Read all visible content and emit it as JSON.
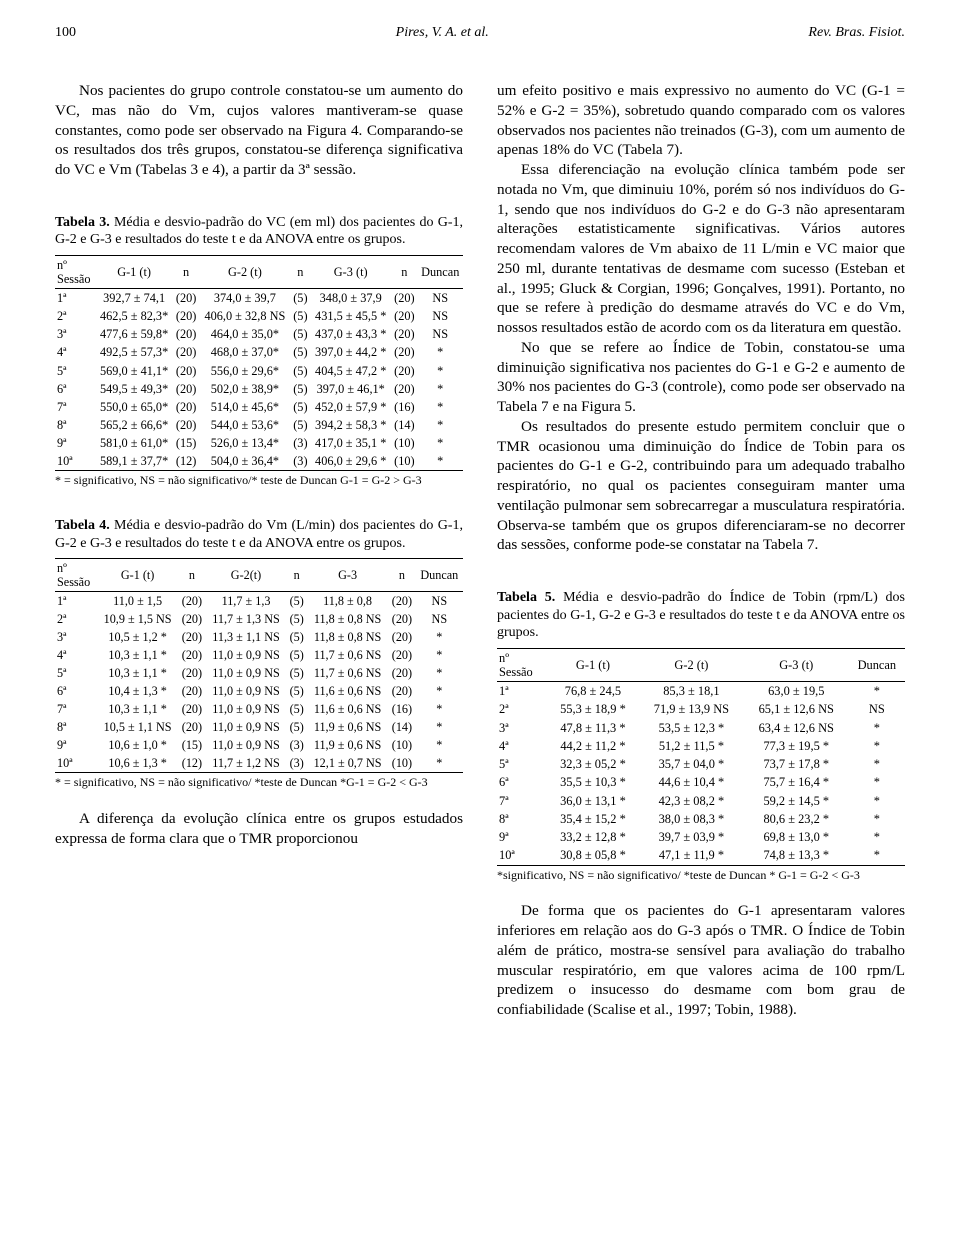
{
  "header": {
    "page_number": "100",
    "center": "Pires, V. A. et al.",
    "right": "Rev. Bras. Fisiot."
  },
  "left_col": {
    "p1": "Nos pacientes do grupo controle constatou-se um aumento do VC, mas não do Vm, cujos valores mantiveram-se quase constantes, como pode ser observado na Figura 4. Comparando-se os resultados dos três grupos, constatou-se diferença significativa do VC e Vm (Tabelas 3 e 4), a partir da 3ª sessão.",
    "t3_caption_b": "Tabela 3.",
    "t3_caption": "Média e desvio-padrão do VC (em ml) dos pacientes do G-1, G-2 e G-3 e resultados do teste t e da ANOVA entre os grupos.",
    "t3_head": {
      "c1a": "nº",
      "c1b": "Sessão",
      "c2": "G-1 (t)",
      "c3": "n",
      "c4": "G-2 (t)",
      "c5": "n",
      "c6": "G-3 (t)",
      "c7": "n",
      "c8": "Duncan"
    },
    "t3_rows": [
      {
        "s": "1ª",
        "g1": "392,7 ± 74,1",
        "n1": "(20)",
        "g2": "374,0 ± 39,7",
        "n2": "(5)",
        "g3": "348,0 ± 37,9",
        "n3": "(20)",
        "d": "NS"
      },
      {
        "s": "2ª",
        "g1": "462,5 ± 82,3*",
        "n1": "(20)",
        "g2": "406,0 ± 32,8 NS",
        "n2": "(5)",
        "g3": "431,5 ± 45,5 *",
        "n3": "(20)",
        "d": "NS"
      },
      {
        "s": "3ª",
        "g1": "477,6 ± 59,8*",
        "n1": "(20)",
        "g2": "464,0 ± 35,0*",
        "n2": "(5)",
        "g3": "437,0 ± 43,3 *",
        "n3": "(20)",
        "d": "NS"
      },
      {
        "s": "4ª",
        "g1": "492,5 ± 57,3*",
        "n1": "(20)",
        "g2": "468,0 ± 37,0*",
        "n2": "(5)",
        "g3": "397,0 ± 44,2 *",
        "n3": "(20)",
        "d": "*"
      },
      {
        "s": "5ª",
        "g1": "569,0 ± 41,1*",
        "n1": "(20)",
        "g2": "556,0 ± 29,6*",
        "n2": "(5)",
        "g3": "404,5 ± 47,2 *",
        "n3": "(20)",
        "d": "*"
      },
      {
        "s": "6ª",
        "g1": "549,5 ± 49,3*",
        "n1": "(20)",
        "g2": "502,0 ± 38,9*",
        "n2": "(5)",
        "g3": "397,0 ± 46,1*",
        "n3": "(20)",
        "d": "*"
      },
      {
        "s": "7ª",
        "g1": "550,0 ± 65,0*",
        "n1": "(20)",
        "g2": "514,0 ± 45,6*",
        "n2": "(5)",
        "g3": "452,0 ± 57,9 *",
        "n3": "(16)",
        "d": "*"
      },
      {
        "s": "8ª",
        "g1": "565,2 ± 66,6*",
        "n1": "(20)",
        "g2": "544,0 ± 53,6*",
        "n2": "(5)",
        "g3": "394,2 ± 58,3 *",
        "n3": "(14)",
        "d": "*"
      },
      {
        "s": "9ª",
        "g1": "581,0 ± 61,0*",
        "n1": "(15)",
        "g2": "526,0 ± 13,4*",
        "n2": "(3)",
        "g3": "417,0 ± 35,1 *",
        "n3": "(10)",
        "d": "*"
      },
      {
        "s": "10ª",
        "g1": "589,1 ± 37,7*",
        "n1": "(12)",
        "g2": "504,0 ± 36,4*",
        "n2": "(3)",
        "g3": "406,0 ± 29,6 *",
        "n3": "(10)",
        "d": "*"
      }
    ],
    "t3_foot": "* = significativo, NS = não significativo/* teste de Duncan G-1 = G-2 > G-3",
    "t4_caption_b": "Tabela 4.",
    "t4_caption": "Média e desvio-padrão do Vm (L/min) dos pacientes do G-1, G-2 e G-3 e resultados do teste t e da ANOVA entre os grupos.",
    "t4_head": {
      "c1a": "nº",
      "c1b": "Sessão",
      "c2": "G-1 (t)",
      "c3": "n",
      "c4": "G-2(t)",
      "c5": "n",
      "c6": "G-3",
      "c7": "n",
      "c8": "Duncan"
    },
    "t4_rows": [
      {
        "s": "1ª",
        "g1": "11,0 ± 1,5",
        "n1": "(20)",
        "g2": "11,7 ± 1,3",
        "n2": "(5)",
        "g3": "11,8 ± 0,8",
        "n3": "(20)",
        "d": "NS"
      },
      {
        "s": "2ª",
        "g1": "10,9 ± 1,5 NS",
        "n1": "(20)",
        "g2": "11,7 ± 1,3 NS",
        "n2": "(5)",
        "g3": "11,8 ± 0,8 NS",
        "n3": "(20)",
        "d": "NS"
      },
      {
        "s": "3ª",
        "g1": "10,5 ± 1,2 *",
        "n1": "(20)",
        "g2": "11,3 ± 1,1 NS",
        "n2": "(5)",
        "g3": "11,8 ± 0,8 NS",
        "n3": "(20)",
        "d": "*"
      },
      {
        "s": "4ª",
        "g1": "10,3 ± 1,1 *",
        "n1": "(20)",
        "g2": "11,0 ± 0,9 NS",
        "n2": "(5)",
        "g3": "11,7 ± 0,6 NS",
        "n3": "(20)",
        "d": "*"
      },
      {
        "s": "5ª",
        "g1": "10,3 ± 1,1 *",
        "n1": "(20)",
        "g2": "11,0 ± 0,9 NS",
        "n2": "(5)",
        "g3": "11,7 ± 0,6 NS",
        "n3": "(20)",
        "d": "*"
      },
      {
        "s": "6ª",
        "g1": "10,4 ± 1,3 *",
        "n1": "(20)",
        "g2": "11,0 ± 0,9 NS",
        "n2": "(5)",
        "g3": "11,6 ± 0,6 NS",
        "n3": "(20)",
        "d": "*"
      },
      {
        "s": "7ª",
        "g1": "10,3 ± 1,1 *",
        "n1": "(20)",
        "g2": "11,0 ± 0,9 NS",
        "n2": "(5)",
        "g3": "11,6 ± 0,6 NS",
        "n3": "(16)",
        "d": "*"
      },
      {
        "s": "8ª",
        "g1": "10,5 ± 1,1 NS",
        "n1": "(20)",
        "g2": "11,0 ± 0,9 NS",
        "n2": "(5)",
        "g3": "11,9 ± 0,6 NS",
        "n3": "(14)",
        "d": "*"
      },
      {
        "s": "9ª",
        "g1": "10,6 ± 1,0 *",
        "n1": "(15)",
        "g2": "11,0 ± 0,9 NS",
        "n2": "(3)",
        "g3": "11,9 ± 0,6 NS",
        "n3": "(10)",
        "d": "*"
      },
      {
        "s": "10ª",
        "g1": "10,6 ± 1,3 *",
        "n1": "(12)",
        "g2": "11,7 ± 1,2 NS",
        "n2": "(3)",
        "g3": "12,1 ± 0,7 NS",
        "n3": "(10)",
        "d": "*"
      }
    ],
    "t4_foot": "* = significativo, NS = não significativo/ *teste de Duncan *G-1 = G-2 < G-3",
    "p2": "A diferença da evolução clínica entre os grupos estudados expressa de forma clara que o TMR proporcionou"
  },
  "right_col": {
    "p1": "um efeito positivo e mais expressivo no aumento do VC (G-1 = 52% e G-2 = 35%), sobretudo quando comparado com os valores observados nos pacientes não treinados (G-3), com um aumento de apenas 18% do VC (Tabela 7).",
    "p2": "Essa diferenciação na evolução clínica também pode ser notada no Vm, que diminuiu 10%, porém só nos indivíduos do G-1, sendo que nos indivíduos do G-2 e do G-3 não apresentaram alterações estatisticamente significativas. Vários autores recomendam valores de Vm abaixo de 11 L/min e VC maior que 250 ml, durante tentativas de desmame com sucesso (Esteban et al., 1995; Gluck & Corgian, 1996; Gonçalves, 1991). Portanto, no que se refere à predição do desmame através do VC e do Vm, nossos resultados estão de acordo com os da literatura em questão.",
    "p3": "No que se refere ao Índice de Tobin, constatou-se uma diminuição significativa nos pacientes do G-1 e G-2 e aumento de 30% nos pacientes do G-3 (controle), como pode ser observado na Tabela 7 e na Figura 5.",
    "p4": "Os resultados do presente estudo permitem concluir que o TMR ocasionou uma diminuição do Índice de Tobin para os pacientes do G-1 e G-2, contribuindo para um adequado trabalho respiratório, no qual os pacientes conseguiram manter uma ventilação pulmonar sem sobrecarregar a musculatura respiratória. Observa-se também que os grupos diferenciaram-se no decorrer das sessões, conforme pode-se constatar na Tabela 7.",
    "t5_caption_b": "Tabela 5.",
    "t5_caption": "Média e desvio-padrão do Índice de Tobin (rpm/L) dos pacientes do G-1, G-2 e G-3 e resultados do teste t e da ANOVA entre os grupos.",
    "t5_head": {
      "c1a": "nº",
      "c1b": "Sessão",
      "c2": "G-1 (t)",
      "c3": "G-2 (t)",
      "c4": "G-3 (t)",
      "c5": "Duncan"
    },
    "t5_rows": [
      {
        "s": "1ª",
        "g1": "76,8 ± 24,5",
        "g2": "85,3 ± 18,1",
        "g3": "63,0 ± 19,5",
        "d": "*"
      },
      {
        "s": "2ª",
        "g1": "55,3 ± 18,9 *",
        "g2": "71,9 ± 13,9 NS",
        "g3": "65,1 ± 12,6 NS",
        "d": "NS"
      },
      {
        "s": "3ª",
        "g1": "47,8 ± 11,3 *",
        "g2": "53,5 ± 12,3 *",
        "g3": "63,4 ± 12,6 NS",
        "d": "*"
      },
      {
        "s": "4ª",
        "g1": "44,2 ± 11,2 *",
        "g2": "51,2 ± 11,5 *",
        "g3": "77,3 ± 19,5 *",
        "d": "*"
      },
      {
        "s": "5ª",
        "g1": "32,3 ± 05,2 *",
        "g2": "35,7 ± 04,0 *",
        "g3": "73,7 ± 17,8 *",
        "d": "*"
      },
      {
        "s": "6ª",
        "g1": "35,5 ± 10,3 *",
        "g2": "44,6 ± 10,4 *",
        "g3": "75,7 ± 16,4 *",
        "d": "*"
      },
      {
        "s": "7ª",
        "g1": "36,0 ± 13,1 *",
        "g2": "42,3 ± 08,2 *",
        "g3": "59,2 ± 14,5 *",
        "d": "*"
      },
      {
        "s": "8ª",
        "g1": "35,4 ± 15,2 *",
        "g2": "38,0 ± 08,3 *",
        "g3": "80,6 ± 23,2 *",
        "d": "*"
      },
      {
        "s": "9ª",
        "g1": "33,2 ± 12,8 *",
        "g2": "39,7 ± 03,9 *",
        "g3": "69,8 ± 13,0 *",
        "d": "*"
      },
      {
        "s": "10ª",
        "g1": "30,8 ± 05,8 *",
        "g2": "47,1 ± 11,9 *",
        "g3": "74,8 ± 13,3 *",
        "d": "*"
      }
    ],
    "t5_foot": "*significativo, NS = não significativo/ *teste de Duncan * G-1 = G-2 < G-3",
    "p5": "De forma que os pacientes do G-1 apresentaram valores inferiores em relação aos do G-3 após o TMR. O Índice de Tobin além de prático, mostra-se sensível para avaliação do trabalho muscular respiratório, em que valores acima de 100 rpm/L predizem o insucesso do desmame com bom grau de confiabilidade (Scalise et al., 1997; Tobin, 1988)."
  }
}
